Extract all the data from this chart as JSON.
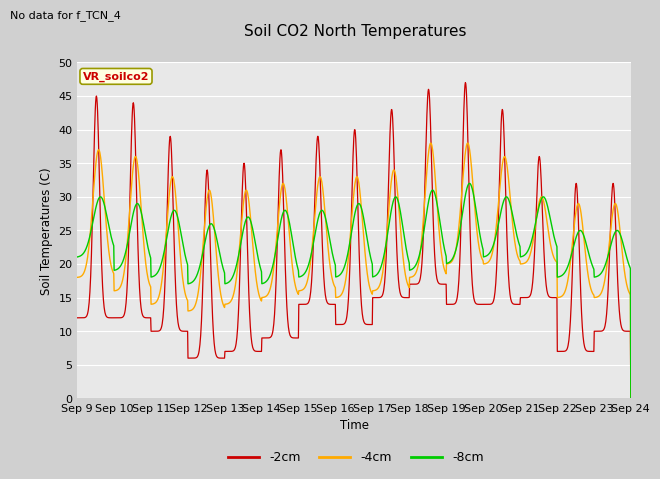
{
  "title": "Soil CO2 North Temperatures",
  "subtitle": "No data for f_TCN_4",
  "legend_label": "VR_soilco2",
  "xlabel": "Time",
  "ylabel": "Soil Temperatures (C)",
  "ylim": [
    0,
    50
  ],
  "colors": {
    "2cm": "#cc0000",
    "4cm": "#ffaa00",
    "8cm": "#00cc00"
  },
  "bg_color": "#e8e8e8",
  "fig_bg_color": "#d0d0d0",
  "tick_labels": [
    "Sep 9",
    "Sep 10",
    "Sep 11",
    "Sep 12",
    "Sep 13",
    "Sep 14",
    "Sep 15",
    "Sep 16",
    "Sep 17",
    "Sep 18",
    "Sep 19",
    "Sep 20",
    "Sep 21",
    "Sep 22",
    "Sep 23",
    "Sep 24"
  ],
  "peaks_2cm": [
    45,
    44,
    39,
    34,
    35,
    37,
    39,
    40,
    43,
    46,
    47,
    43,
    36,
    32,
    32
  ],
  "mins_2cm": [
    12,
    12,
    10,
    6,
    7,
    9,
    14,
    11,
    15,
    17,
    14,
    14,
    15,
    7,
    10
  ],
  "peaks_4cm": [
    37,
    36,
    33,
    31,
    31,
    32,
    33,
    33,
    34,
    38,
    38,
    36,
    30,
    29,
    29
  ],
  "mins_4cm": [
    18,
    16,
    14,
    13,
    14,
    15,
    16,
    15,
    16,
    18,
    20,
    20,
    20,
    15,
    15
  ],
  "peaks_8cm": [
    30,
    29,
    28,
    26,
    27,
    28,
    28,
    29,
    30,
    31,
    32,
    30,
    30,
    25,
    25
  ],
  "mins_8cm": [
    21,
    19,
    18,
    17,
    17,
    17,
    18,
    18,
    18,
    19,
    20,
    21,
    21,
    18,
    18
  ]
}
